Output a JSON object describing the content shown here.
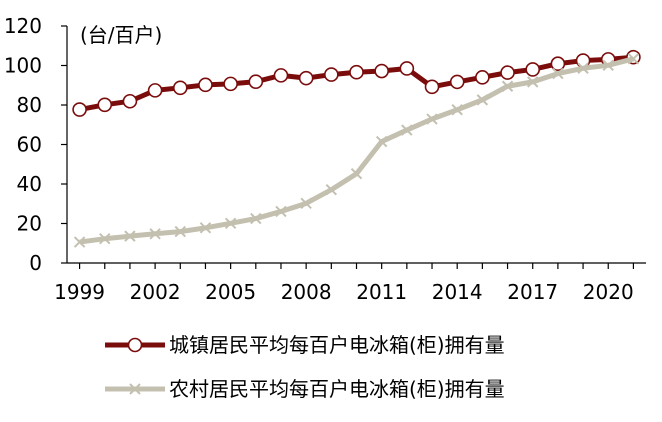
{
  "chart_data": {
    "type": "line",
    "unit_label": "(台/百户)",
    "x": [
      1999,
      2000,
      2001,
      2002,
      2003,
      2004,
      2005,
      2006,
      2007,
      2008,
      2009,
      2010,
      2011,
      2012,
      2013,
      2014,
      2015,
      2016,
      2017,
      2018,
      2019,
      2020,
      2021
    ],
    "x_ticks": [
      "1999",
      "2002",
      "2005",
      "2008",
      "2011",
      "2014",
      "2017",
      "2020"
    ],
    "y_ticks": [
      "0",
      "20",
      "40",
      "60",
      "80",
      "100",
      "120"
    ],
    "ylim": [
      0,
      120
    ],
    "grid": false,
    "legend_position": "bottom",
    "series": [
      {
        "name": "城镇居民平均每百户电冰箱(柜)拥有量",
        "color": "#7b0c0c",
        "marker": "circle",
        "values": [
          77.7,
          80.1,
          81.9,
          87.4,
          88.7,
          90.2,
          90.7,
          91.8,
          95.0,
          93.6,
          95.4,
          96.6,
          97.2,
          98.5,
          89.2,
          91.7,
          94.0,
          96.4,
          98.0,
          100.9,
          102.5,
          103.1,
          104.2
        ]
      },
      {
        "name": "农村居民平均每百户电冰箱(柜)拥有量",
        "color": "#c4c0b0",
        "marker": "x",
        "values": [
          10.6,
          12.3,
          13.6,
          14.8,
          15.9,
          17.8,
          20.1,
          22.5,
          26.1,
          30.2,
          37.1,
          45.2,
          61.5,
          67.3,
          72.9,
          77.6,
          82.6,
          89.5,
          91.7,
          95.9,
          98.6,
          100.1,
          103.4
        ]
      }
    ]
  }
}
